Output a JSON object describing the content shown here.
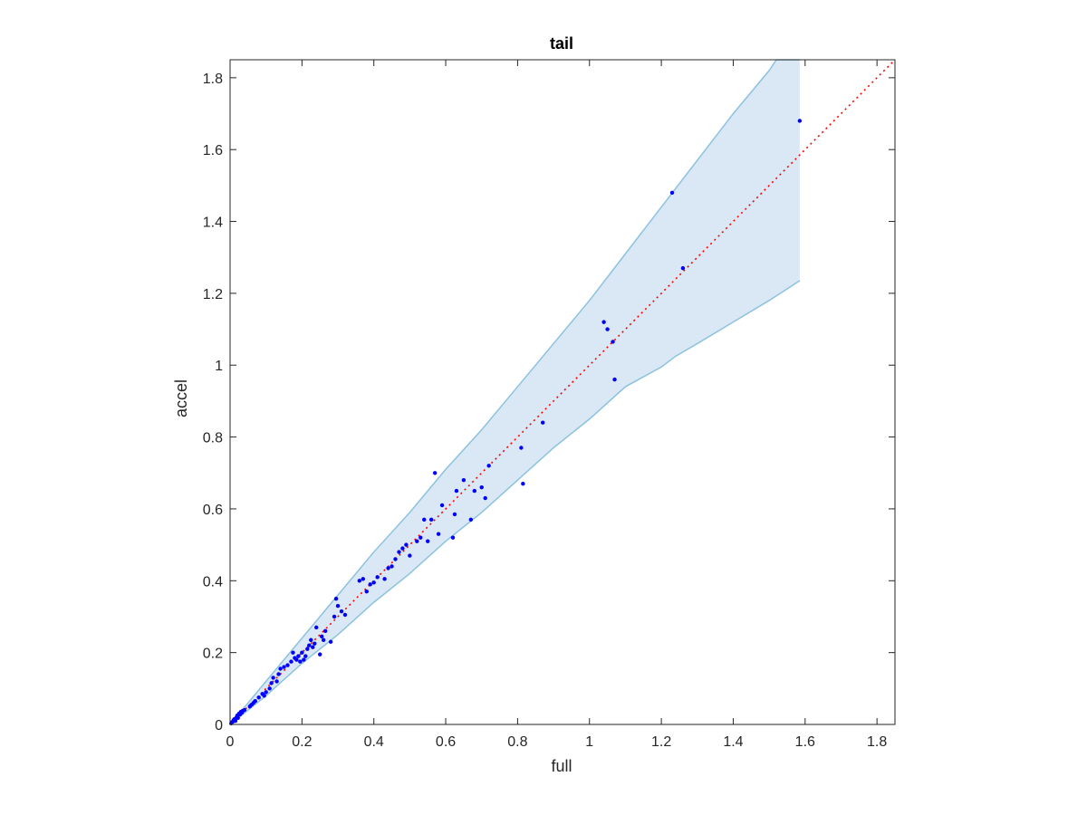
{
  "chart_data": {
    "type": "scatter",
    "title": "tail",
    "xlabel": "full",
    "ylabel": "accel",
    "xlim": [
      0,
      1.85
    ],
    "ylim": [
      0,
      1.85
    ],
    "x_ticks": [
      0,
      0.2,
      0.4,
      0.6,
      0.8,
      1,
      1.2,
      1.4,
      1.6,
      1.8
    ],
    "x_tick_labels": [
      "0",
      "0.2",
      "0.4",
      "0.6",
      "0.8",
      "1",
      "1.2",
      "1.4",
      "1.6",
      "1.8"
    ],
    "y_ticks": [
      0,
      0.2,
      0.4,
      0.6,
      0.8,
      1,
      1.2,
      1.4,
      1.6,
      1.8
    ],
    "y_tick_labels": [
      "0",
      "0.2",
      "0.4",
      "0.6",
      "0.8",
      "1",
      "1.2",
      "1.4",
      "1.6",
      "1.8"
    ],
    "grid": false,
    "legend": "none",
    "colors": {
      "points": "#0000ff",
      "reference_line": "#ff0000",
      "band_fill": "#d9e8f4",
      "band_edge": "#8cc2e0",
      "axes": "#262626"
    },
    "reference_line": {
      "style": "dotted",
      "x": [
        0,
        1.85
      ],
      "y": [
        0,
        1.85
      ]
    },
    "band": {
      "upper": {
        "x": [
          0,
          0.05,
          0.1,
          0.2,
          0.3,
          0.4,
          0.5,
          0.6,
          0.7,
          0.8,
          0.9,
          1.0,
          1.1,
          1.2,
          1.3,
          1.4,
          1.5,
          1.52,
          1.585
        ],
        "y": [
          0,
          0.06,
          0.12,
          0.24,
          0.36,
          0.48,
          0.59,
          0.71,
          0.82,
          0.94,
          1.06,
          1.18,
          1.31,
          1.44,
          1.57,
          1.7,
          1.82,
          1.85,
          1.85
        ]
      },
      "lower": {
        "x": [
          0,
          0.05,
          0.1,
          0.2,
          0.3,
          0.4,
          0.5,
          0.6,
          0.7,
          0.8,
          0.9,
          1.0,
          1.1,
          1.2,
          1.24,
          1.3,
          1.4,
          1.5,
          1.585
        ],
        "y": [
          0,
          0.04,
          0.08,
          0.17,
          0.25,
          0.34,
          0.42,
          0.51,
          0.59,
          0.68,
          0.77,
          0.85,
          0.94,
          0.995,
          1.025,
          1.06,
          1.12,
          1.18,
          1.235
        ]
      }
    },
    "points": {
      "x": [
        0.003,
        0.005,
        0.008,
        0.01,
        0.012,
        0.015,
        0.018,
        0.02,
        0.022,
        0.025,
        0.028,
        0.03,
        0.033,
        0.035,
        0.04,
        0.055,
        0.06,
        0.065,
        0.07,
        0.08,
        0.09,
        0.095,
        0.1,
        0.11,
        0.115,
        0.12,
        0.13,
        0.135,
        0.14,
        0.15,
        0.16,
        0.17,
        0.175,
        0.18,
        0.185,
        0.19,
        0.195,
        0.2,
        0.205,
        0.21,
        0.215,
        0.22,
        0.225,
        0.23,
        0.235,
        0.24,
        0.25,
        0.255,
        0.26,
        0.265,
        0.28,
        0.29,
        0.295,
        0.3,
        0.31,
        0.32,
        0.36,
        0.37,
        0.38,
        0.39,
        0.4,
        0.41,
        0.43,
        0.44,
        0.45,
        0.46,
        0.47,
        0.48,
        0.49,
        0.5,
        0.52,
        0.53,
        0.54,
        0.55,
        0.56,
        0.57,
        0.58,
        0.59,
        0.62,
        0.625,
        0.63,
        0.65,
        0.67,
        0.68,
        0.7,
        0.71,
        0.72,
        0.81,
        0.815,
        0.87,
        1.04,
        1.05,
        1.065,
        1.07,
        1.23,
        1.26,
        1.585
      ],
      "y": [
        0.003,
        0.006,
        0.008,
        0.012,
        0.015,
        0.01,
        0.02,
        0.025,
        0.018,
        0.03,
        0.028,
        0.035,
        0.033,
        0.038,
        0.04,
        0.05,
        0.055,
        0.06,
        0.065,
        0.075,
        0.085,
        0.08,
        0.09,
        0.1,
        0.115,
        0.13,
        0.12,
        0.14,
        0.155,
        0.16,
        0.165,
        0.175,
        0.2,
        0.185,
        0.18,
        0.19,
        0.175,
        0.2,
        0.18,
        0.19,
        0.21,
        0.22,
        0.235,
        0.215,
        0.225,
        0.27,
        0.195,
        0.245,
        0.235,
        0.26,
        0.23,
        0.3,
        0.35,
        0.33,
        0.315,
        0.305,
        0.4,
        0.405,
        0.37,
        0.39,
        0.395,
        0.41,
        0.405,
        0.435,
        0.44,
        0.46,
        0.48,
        0.49,
        0.5,
        0.47,
        0.51,
        0.52,
        0.57,
        0.51,
        0.57,
        0.7,
        0.53,
        0.61,
        0.52,
        0.585,
        0.65,
        0.68,
        0.57,
        0.65,
        0.66,
        0.63,
        0.72,
        0.77,
        0.67,
        0.84,
        1.12,
        1.1,
        1.065,
        0.96,
        1.48,
        1.27,
        1.68
      ]
    }
  }
}
